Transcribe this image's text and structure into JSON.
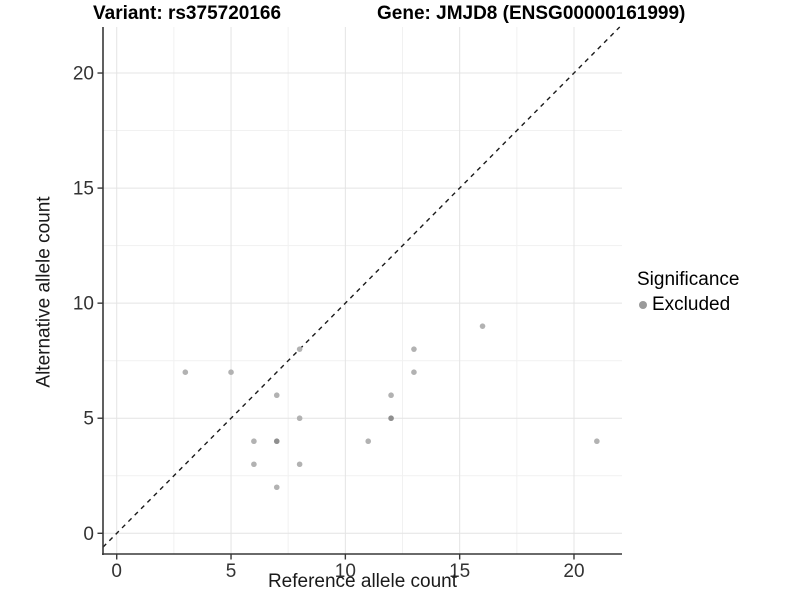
{
  "chart_data": {
    "type": "scatter",
    "title_left": "Variant: rs375720166",
    "title_right": "Gene: JMJD8 (ENSG00000161999)",
    "xlabel": "Reference allele count",
    "ylabel": "Alternative allele count",
    "xlim": [
      -0.6,
      22.1
    ],
    "ylim": [
      -0.9,
      22.0
    ],
    "xticks": [
      0,
      5,
      10,
      15,
      20
    ],
    "yticks": [
      0,
      5,
      10,
      15,
      20
    ],
    "minor_grid_step": 2.5,
    "grid": "major+minor horizontal+vertical",
    "identity_line": {
      "type": "abline",
      "slope": 1,
      "intercept": 0,
      "style": "dashed",
      "color": "#1a1a1a"
    },
    "legend": {
      "title": "Significance",
      "position": "right",
      "entries": [
        {
          "label": "Excluded",
          "color": "#9a9a9a"
        }
      ]
    },
    "series": [
      {
        "name": "Excluded",
        "color": "#b2b2b2",
        "points": [
          [
            3,
            7
          ],
          [
            5,
            7
          ],
          [
            6,
            3
          ],
          [
            6,
            4
          ],
          [
            7,
            2
          ],
          [
            7,
            4
          ],
          [
            7,
            6
          ],
          [
            8,
            3
          ],
          [
            8,
            5
          ],
          [
            8,
            8
          ],
          [
            11,
            4
          ],
          [
            12,
            5
          ],
          [
            12,
            6
          ],
          [
            13,
            7
          ],
          [
            13,
            8
          ],
          [
            16,
            9
          ],
          [
            21,
            4
          ]
        ]
      }
    ],
    "overplotted_points": [
      [
        7,
        4
      ],
      [
        12,
        5
      ]
    ],
    "overplotted_color": "#8f8f8f"
  },
  "style": {
    "grid_major": "#e4e4e4",
    "grid_minor": "#f1f1f1",
    "axis_color": "#383838",
    "tick_label_color": "#333333",
    "point_radius": 2.8
  }
}
